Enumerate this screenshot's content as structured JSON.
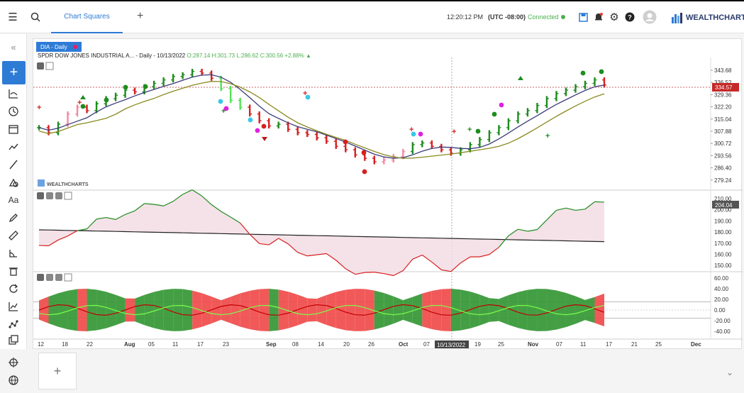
{
  "topbar": {
    "tab_label": "Chart Squares",
    "time": "12:20:12 PM",
    "timezone": "(UTC -08:00)",
    "status": "Connected",
    "brand": "WEALTHCHARTS",
    "icons": [
      "menu-icon",
      "search-icon",
      "save-icon",
      "bell-icon",
      "gear-icon",
      "help-icon",
      "user-icon"
    ]
  },
  "sidebar": {
    "icons": [
      "collapse-left-icon",
      "add-icon",
      "indicator-icon",
      "clock-icon",
      "calendar-icon",
      "trend-icon",
      "line-tool-icon",
      "shapes-icon",
      "text-icon",
      "pencil-icon",
      "ruler-icon",
      "angle-icon",
      "trash-icon",
      "refresh-icon",
      "chart-icon",
      "scatter-icon",
      "layers-icon",
      "crosshair-icon",
      "globe-icon"
    ]
  },
  "chart": {
    "label": "DIA - Daily",
    "ohlc_prefix": "SPDR DOW JONES INDUSTRIAL A...",
    "ohlc_daily": "- Daily - 10/13/2022",
    "o": "O:287.14",
    "h": "H:301.73",
    "l": "L:286.62",
    "c": "C:300.56",
    "chg": "+2.88%",
    "watermark": "WEALTHCHARTS",
    "price_ticks": [
      "343.68",
      "336.52",
      "329.36",
      "322.20",
      "315.04",
      "307.88",
      "300.72",
      "293.56",
      "286.40",
      "279.24"
    ],
    "current_price": "334.57",
    "ind1_ticks": [
      "210.00",
      "200.00",
      "190.00",
      "180.00",
      "170.00",
      "160.00",
      "150.00"
    ],
    "ind1_current": "204.04",
    "ind2_ticks": [
      "60.00",
      "40.00",
      "20.00",
      "0.00",
      "-20.00",
      "-40.00"
    ],
    "x_labels": [
      "12",
      "18",
      "22",
      "Aug",
      "05",
      "11",
      "17",
      "23",
      "Sep",
      "08",
      "14",
      "20",
      "26",
      "Oct",
      "07",
      "19",
      "25",
      "Nov",
      "07",
      "11",
      "17",
      "21",
      "25",
      "Dec"
    ],
    "x_highlight": "10/13/2022"
  },
  "colors": {
    "accent": "#2e7bd6",
    "up": "#1e8c1e",
    "down": "#d62020",
    "ma_fast": "#3b3b7a",
    "ma_slow": "#8a8a20"
  }
}
